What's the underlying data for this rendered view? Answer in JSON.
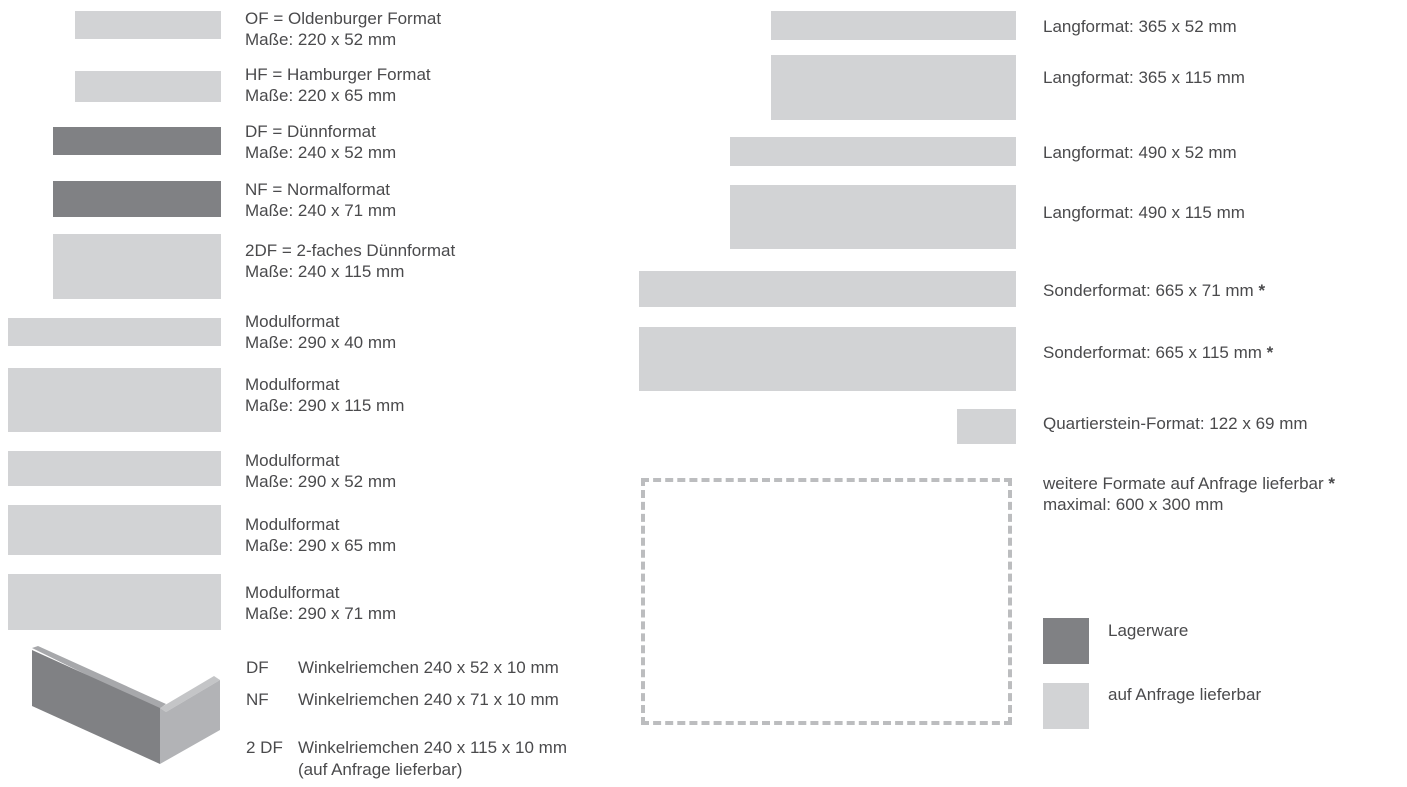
{
  "colors": {
    "stock": "#808184",
    "on_request": "#d2d3d5",
    "dash": "#bcbdbf",
    "text": "#4a4a4c"
  },
  "left_formats": [
    {
      "l1": "OF = Oldenburger Format",
      "key": "Maße:",
      "val": "220 x 52 mm",
      "stock": false
    },
    {
      "l1": "HF = Hamburger Format",
      "key": "Maße:",
      "val": "220 x 65 mm",
      "stock": false
    },
    {
      "l1": "DF = Dünnformat",
      "key": "Maße:",
      "val": "240 x 52 mm",
      "stock": true
    },
    {
      "l1": "NF = Normalformat",
      "key": "Maße:",
      "val": "240 x 71 mm",
      "stock": true
    },
    {
      "l1": "2DF = 2-faches Dünnformat",
      "key": "Maße:",
      "val": "240 x 115 mm",
      "stock": false
    },
    {
      "l1": "Modulformat",
      "key": "Maße:",
      "val": "290 x 40 mm",
      "stock": false
    },
    {
      "l1": "Modulformat",
      "key": "Maße:",
      "val": "290 x 115 mm",
      "stock": false
    },
    {
      "l1": "Modulformat",
      "key": "Maße:",
      "val": "290 x 52 mm",
      "stock": false
    },
    {
      "l1": "Modulformat",
      "key": "Maße:",
      "val": "290 x 65 mm",
      "stock": false
    },
    {
      "l1": "Modulformat",
      "key": "Maße:",
      "val": "290 x 71 mm",
      "stock": false
    }
  ],
  "right_formats": [
    {
      "label": "Langformat: 365 x 52 mm",
      "star": ""
    },
    {
      "label": "Langformat: 365 x 115 mm",
      "star": ""
    },
    {
      "label": "Langformat: 490 x 52 mm",
      "star": ""
    },
    {
      "label": "Langformat: 490 x 115 mm",
      "star": ""
    },
    {
      "label": "Sonderformat: 665 x 71 mm ",
      "star": "*"
    },
    {
      "label": "Sonderformat: 665 x 115 mm ",
      "star": "*"
    },
    {
      "label": "Quartierstein-Format: 122 x 69 mm",
      "star": ""
    }
  ],
  "further": {
    "l1": "weitere Formate auf Anfrage lieferbar ",
    "star": "*",
    "l2_key": "maximal:",
    "l2_val": "600 x 300 mm"
  },
  "winkel": [
    {
      "code": "DF",
      "name": "Winkelriemchen",
      "dims": "240 x 52 x 10 mm"
    },
    {
      "code": "NF",
      "name": "Winkelriemchen",
      "dims": "240 x 71 x 10 mm"
    },
    {
      "code": "2 DF",
      "name": "Winkelriemchen",
      "dims": "240 x 115 x 10 mm"
    }
  ],
  "winkel_note": "(auf Anfrage lieferbar)",
  "legend": [
    {
      "label": "Lagerware",
      "stock": true
    },
    {
      "label": "auf Anfrage lieferbar",
      "stock": false
    }
  ]
}
